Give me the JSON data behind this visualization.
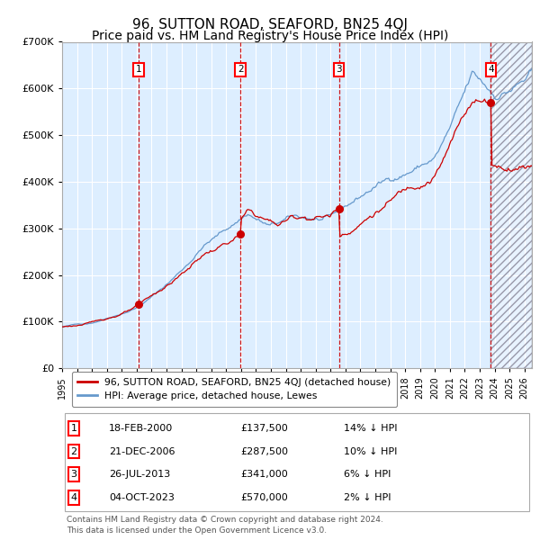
{
  "title": "96, SUTTON ROAD, SEAFORD, BN25 4QJ",
  "subtitle": "Price paid vs. HM Land Registry's House Price Index (HPI)",
  "ylim": [
    0,
    700000
  ],
  "yticks": [
    0,
    100000,
    200000,
    300000,
    400000,
    500000,
    600000,
    700000
  ],
  "ytick_labels": [
    "£0",
    "£100K",
    "£200K",
    "£300K",
    "£400K",
    "£500K",
    "£600K",
    "£700K"
  ],
  "xlim_start": 1995.0,
  "xlim_end": 2026.5,
  "x_ticks": [
    1995,
    1996,
    1997,
    1998,
    1999,
    2000,
    2001,
    2002,
    2003,
    2004,
    2005,
    2006,
    2007,
    2008,
    2009,
    2010,
    2011,
    2012,
    2013,
    2014,
    2015,
    2016,
    2017,
    2018,
    2019,
    2020,
    2021,
    2022,
    2023,
    2024,
    2025,
    2026
  ],
  "sale_dates": [
    2000.12,
    2006.97,
    2013.56,
    2023.75
  ],
  "sale_prices": [
    137500,
    287500,
    341000,
    570000
  ],
  "sale_labels": [
    "1",
    "2",
    "3",
    "4"
  ],
  "hpi_color": "#6699cc",
  "sale_color": "#cc0000",
  "vline_color": "#cc0000",
  "bg_color": "#ddeeff",
  "grid_color": "#ffffff",
  "legend_label_red": "96, SUTTON ROAD, SEAFORD, BN25 4QJ (detached house)",
  "legend_label_blue": "HPI: Average price, detached house, Lewes",
  "table_data": [
    {
      "num": "1",
      "date": "18-FEB-2000",
      "price": "£137,500",
      "hpi": "14% ↓ HPI"
    },
    {
      "num": "2",
      "date": "21-DEC-2006",
      "price": "£287,500",
      "hpi": "10% ↓ HPI"
    },
    {
      "num": "3",
      "date": "26-JUL-2013",
      "price": "£341,000",
      "hpi": "6% ↓ HPI"
    },
    {
      "num": "4",
      "date": "04-OCT-2023",
      "price": "£570,000",
      "hpi": "2% ↓ HPI"
    }
  ],
  "footer": "Contains HM Land Registry data © Crown copyright and database right 2024.\nThis data is licensed under the Open Government Licence v3.0.",
  "title_fontsize": 11,
  "subtitle_fontsize": 10
}
